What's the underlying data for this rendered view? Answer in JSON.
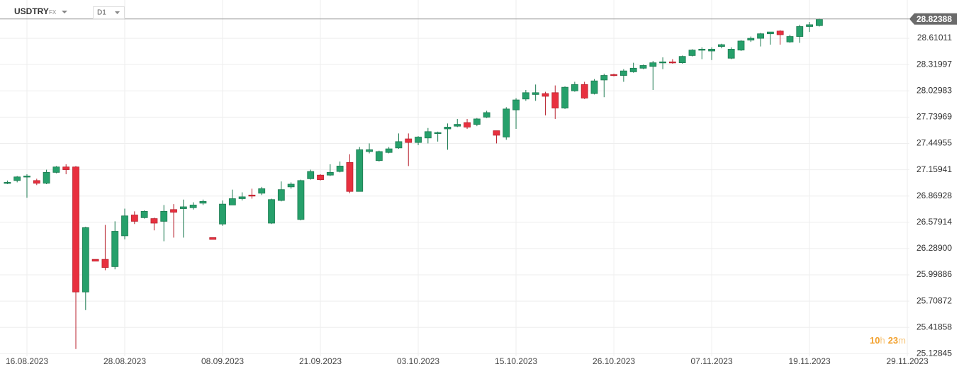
{
  "chart_data": {
    "type": "candlestick",
    "symbol": "USDTRY",
    "market": "FX",
    "timeframe": "D1",
    "current_price": 28.82388,
    "countdown": {
      "hours": "10",
      "hours_unit": "h",
      "minutes": "23",
      "minutes_unit": "m"
    },
    "up_color": "#26a06b",
    "down_color": "#e8303f",
    "grid": true,
    "ylim": [
      25.1,
      28.9
    ],
    "yticks": [
      25.12845,
      25.41858,
      25.70872,
      25.99886,
      {
        "value": 26.289,
        "label": "26.28900"
      },
      26.57914,
      26.86928,
      27.15941,
      27.44955,
      27.73969,
      28.02983,
      28.31997,
      28.61011
    ],
    "categories": [
      null,
      null,
      "16.08.2023",
      null,
      null,
      null,
      null,
      null,
      null,
      null,
      null,
      null,
      "28.08.2023",
      null,
      null,
      null,
      null,
      null,
      null,
      null,
      null,
      null,
      "08.09.2023",
      null,
      null,
      null,
      null,
      null,
      null,
      null,
      null,
      null,
      "21.09.2023",
      null,
      null,
      null,
      null,
      null,
      null,
      null,
      null,
      null,
      "03.10.2023",
      null,
      null,
      null,
      null,
      null,
      null,
      null,
      null,
      null,
      "15.10.2023",
      null,
      null,
      null,
      null,
      null,
      null,
      null,
      null,
      null,
      "26.10.2023",
      null,
      null,
      null,
      null,
      null,
      null,
      null,
      null,
      null,
      "07.11.2023",
      null,
      null,
      null,
      null,
      null,
      null,
      null,
      null,
      null,
      "19.11.2023",
      null,
      null,
      null,
      null,
      null,
      null,
      null,
      null,
      null,
      "29.11.2023"
    ],
    "open": [
      27.01,
      27.04,
      27.08,
      27.04,
      27.01,
      27.13,
      27.19,
      27.19,
      25.81,
      26.17,
      26.17,
      26.09,
      26.43,
      26.66,
      26.63,
      26.62,
      26.59,
      26.72,
      26.73,
      26.74,
      26.79,
      26.41,
      26.56,
      26.77,
      26.84,
      26.88,
      26.9,
      26.57,
      26.82,
      26.97,
      26.61,
      27.06,
      27.1,
      27.1,
      27.14,
      27.24,
      26.92,
      27.36,
      27.26,
      27.35,
      27.4,
      27.5,
      27.46,
      27.51,
      27.56,
      27.61,
      27.64,
      27.68,
      27.66,
      27.74,
      27.59,
      27.52,
      27.82,
      27.94,
      27.99,
      28.0,
      28.01,
      27.84,
      28.03,
      28.1,
      28.0,
      28.15,
      28.21,
      28.2,
      28.24,
      28.28,
      28.3,
      28.34,
      28.35,
      28.34,
      28.42,
      28.48,
      28.47,
      28.52,
      28.39,
      28.48,
      28.59,
      28.61,
      28.66,
      28.69,
      28.57,
      28.63,
      28.74,
      28.75,
      null,
      null,
      null,
      null,
      null,
      null,
      null,
      null,
      null
    ],
    "high": [
      27.04,
      27.09,
      27.11,
      27.06,
      27.16,
      27.2,
      27.22,
      27.2,
      26.53,
      26.17,
      26.55,
      26.59,
      26.73,
      26.7,
      26.71,
      26.63,
      26.77,
      26.78,
      26.83,
      26.8,
      26.83,
      26.41,
      26.82,
      26.94,
      26.91,
      26.95,
      26.97,
      26.84,
      27.03,
      27.02,
      27.05,
      27.16,
      27.11,
      27.22,
      27.25,
      27.33,
      27.41,
      27.45,
      27.37,
      27.41,
      27.56,
      27.56,
      27.53,
      27.62,
      27.58,
      27.67,
      27.72,
      27.72,
      27.73,
      27.81,
      27.59,
      27.85,
      27.95,
      28.04,
      28.1,
      28.02,
      28.09,
      28.08,
      28.13,
      28.13,
      28.16,
      28.22,
      28.22,
      28.27,
      28.34,
      28.32,
      28.36,
      28.4,
      28.38,
      28.42,
      28.49,
      28.51,
      28.51,
      28.55,
      28.51,
      28.59,
      28.63,
      28.67,
      28.68,
      28.7,
      28.65,
      28.76,
      28.79,
      28.83,
      null,
      null,
      null,
      null,
      null,
      null,
      null,
      null,
      null
    ],
    "low": [
      27.0,
      27.02,
      26.85,
      26.99,
      27.0,
      27.12,
      27.11,
      25.18,
      25.61,
      26.15,
      26.05,
      26.06,
      26.39,
      26.56,
      26.62,
      26.49,
      26.37,
      26.41,
      26.41,
      26.72,
      26.77,
      26.39,
      26.54,
      26.77,
      26.82,
      26.84,
      26.88,
      26.56,
      26.81,
      26.95,
      26.6,
      27.05,
      27.04,
      27.09,
      27.13,
      26.9,
      26.92,
      27.34,
      27.25,
      27.34,
      27.39,
      27.2,
      27.43,
      27.45,
      27.47,
      27.38,
      27.63,
      27.61,
      27.64,
      27.73,
      27.45,
      27.49,
      27.61,
      27.92,
      27.92,
      27.76,
      27.72,
      27.83,
      28.02,
      27.94,
      27.99,
      27.96,
      28.19,
      28.13,
      28.23,
      28.27,
      28.04,
      28.27,
      28.33,
      28.33,
      28.41,
      28.38,
      28.37,
      28.5,
      28.38,
      28.47,
      28.57,
      28.52,
      28.54,
      28.54,
      28.56,
      28.56,
      28.68,
      28.74,
      null,
      null,
      null,
      null,
      null,
      null,
      null,
      null,
      null
    ],
    "close": [
      27.02,
      27.08,
      27.09,
      27.01,
      27.13,
      27.19,
      27.16,
      25.81,
      26.52,
      26.15,
      26.08,
      26.48,
      26.65,
      26.59,
      26.7,
      26.57,
      26.7,
      26.69,
      26.75,
      26.77,
      26.81,
      26.39,
      26.78,
      26.84,
      26.86,
      26.87,
      26.95,
      26.83,
      26.94,
      27.0,
      27.04,
      27.14,
      27.05,
      27.13,
      27.2,
      26.92,
      27.38,
      27.38,
      27.36,
      27.39,
      27.47,
      27.46,
      27.52,
      27.58,
      27.57,
      27.63,
      27.66,
      27.63,
      27.72,
      27.79,
      27.54,
      27.83,
      27.93,
      28.01,
      28.01,
      27.97,
      27.84,
      28.07,
      28.1,
      27.95,
      28.14,
      28.2,
      28.2,
      28.25,
      28.28,
      28.31,
      28.34,
      28.35,
      28.34,
      28.41,
      28.48,
      28.49,
      28.49,
      28.54,
      28.49,
      28.58,
      28.61,
      28.66,
      28.68,
      28.65,
      28.63,
      28.74,
      28.76,
      28.82,
      null,
      null,
      null,
      null,
      null,
      null,
      null,
      null,
      null
    ]
  }
}
